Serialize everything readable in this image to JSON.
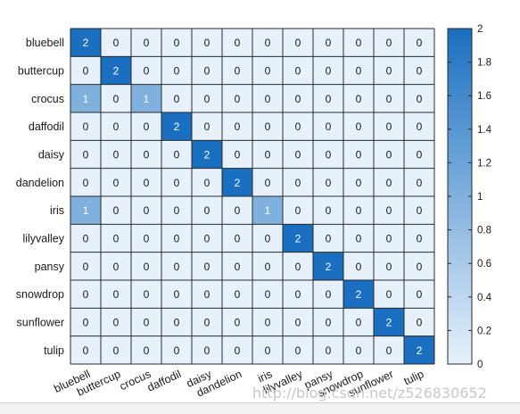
{
  "chart_data": {
    "type": "heatmap",
    "rows": [
      "bluebell",
      "buttercup",
      "crocus",
      "daffodil",
      "daisy",
      "dandelion",
      "iris",
      "lilyvalley",
      "pansy",
      "snowdrop",
      "sunflower",
      "tulip"
    ],
    "columns": [
      "bluebell",
      "buttercup",
      "crocus",
      "daffodil",
      "daisy",
      "dandelion",
      "iris",
      "lilyvalley",
      "pansy",
      "snowdrop",
      "sunflower",
      "tulip"
    ],
    "values": [
      [
        2,
        0,
        0,
        0,
        0,
        0,
        0,
        0,
        0,
        0,
        0,
        0
      ],
      [
        0,
        2,
        0,
        0,
        0,
        0,
        0,
        0,
        0,
        0,
        0,
        0
      ],
      [
        1,
        0,
        1,
        0,
        0,
        0,
        0,
        0,
        0,
        0,
        0,
        0
      ],
      [
        0,
        0,
        0,
        2,
        0,
        0,
        0,
        0,
        0,
        0,
        0,
        0
      ],
      [
        0,
        0,
        0,
        0,
        2,
        0,
        0,
        0,
        0,
        0,
        0,
        0
      ],
      [
        0,
        0,
        0,
        0,
        0,
        2,
        0,
        0,
        0,
        0,
        0,
        0
      ],
      [
        1,
        0,
        0,
        0,
        0,
        0,
        1,
        0,
        0,
        0,
        0,
        0
      ],
      [
        0,
        0,
        0,
        0,
        0,
        0,
        0,
        2,
        0,
        0,
        0,
        0
      ],
      [
        0,
        0,
        0,
        0,
        0,
        0,
        0,
        0,
        2,
        0,
        0,
        0
      ],
      [
        0,
        0,
        0,
        0,
        0,
        0,
        0,
        0,
        0,
        2,
        0,
        0
      ],
      [
        0,
        0,
        0,
        0,
        0,
        0,
        0,
        0,
        0,
        0,
        2,
        0
      ],
      [
        0,
        0,
        0,
        0,
        0,
        0,
        0,
        0,
        0,
        0,
        0,
        2
      ]
    ],
    "colorbar": {
      "min": 0,
      "max": 2,
      "ticks": [
        0,
        0.2,
        0.4,
        0.6,
        0.8,
        1,
        1.2,
        1.4,
        1.6,
        1.8,
        2
      ],
      "tick_labels": [
        "0",
        "0.2",
        "0.4",
        "0.6",
        "0.8",
        "1",
        "1.2",
        "1.4",
        "1.6",
        "1.8",
        "2"
      ],
      "color_low": "#e6f1fb",
      "color_high": "#1a6fc0"
    },
    "title": "",
    "xlabel": "",
    "ylabel": ""
  },
  "watermark": "http://blog.csdn.net/z526830652",
  "colors": {
    "grid_line": "#2a2a2a",
    "text_dark": "#1a1a1a",
    "text_light": "#ffffff"
  }
}
